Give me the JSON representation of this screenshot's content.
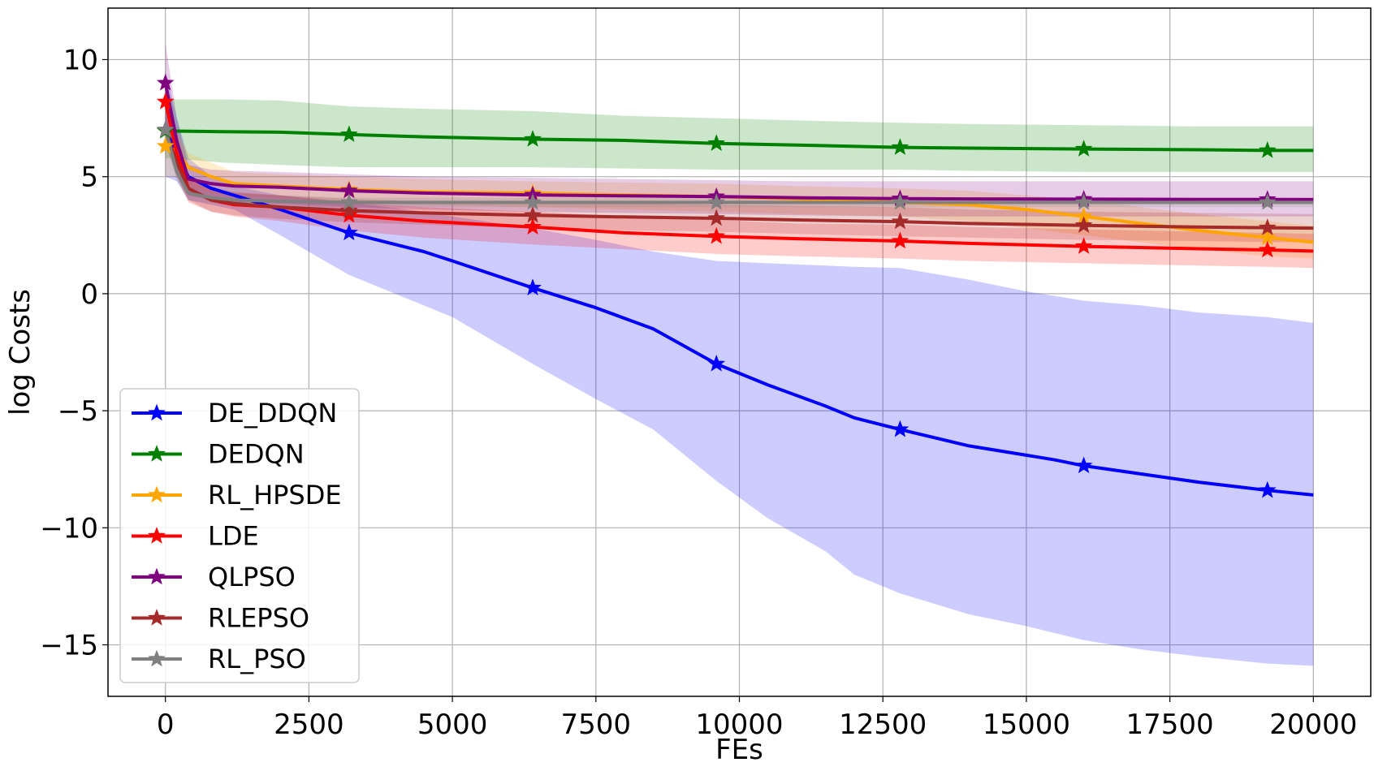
{
  "chart_data": {
    "type": "line",
    "title": "",
    "xlabel": "FEs",
    "ylabel": "log Costs",
    "xlim": [
      -1000,
      21000
    ],
    "ylim": [
      -17.2,
      12.2
    ],
    "xticks": [
      0,
      2500,
      5000,
      7500,
      10000,
      12500,
      15000,
      17500,
      20000
    ],
    "xtick_labels": [
      "0",
      "2500",
      "5000",
      "7500",
      "10000",
      "12500",
      "15000",
      "17500",
      "20000"
    ],
    "yticks": [
      10,
      5,
      0,
      -5,
      -10,
      -15
    ],
    "ytick_labels": [
      "10",
      "5",
      "0",
      "−5",
      "−10",
      "−15"
    ],
    "grid": true,
    "legend_position": "lower-left",
    "marker_x": [
      0,
      3200,
      6400,
      9600,
      12800,
      16000,
      19200
    ],
    "series": [
      {
        "name": "DE_DDQN",
        "color": "#0000ff",
        "fill_opacity": 0.2,
        "x": [
          0,
          200,
          400,
          800,
          1200,
          2000,
          3200,
          4500,
          5000,
          6400,
          7500,
          8500,
          9600,
          10500,
          11500,
          12000,
          12800,
          14000,
          15000,
          15500,
          16000,
          17000,
          18000,
          19200,
          20000
        ],
        "mean": [
          7.0,
          6.0,
          5.0,
          4.5,
          4.2,
          3.6,
          2.6,
          1.8,
          1.4,
          0.25,
          -0.6,
          -1.5,
          -3.0,
          -3.9,
          -4.8,
          -5.3,
          -5.8,
          -6.5,
          -6.9,
          -7.1,
          -7.35,
          -7.7,
          -8.05,
          -8.4,
          -8.6
        ],
        "lower": [
          5.0,
          4.8,
          4.0,
          3.8,
          3.6,
          2.5,
          0.8,
          -0.5,
          -1.0,
          -3.0,
          -4.5,
          -5.8,
          -8.0,
          -9.6,
          -11.0,
          -12.0,
          -12.8,
          -13.7,
          -14.2,
          -14.5,
          -14.8,
          -15.2,
          -15.5,
          -15.8,
          -15.9
        ],
        "upper": [
          9.5,
          7.5,
          5.8,
          5.0,
          4.6,
          4.2,
          3.9,
          3.5,
          3.3,
          2.8,
          2.3,
          1.8,
          1.4,
          1.3,
          1.2,
          1.15,
          1.1,
          0.6,
          0.1,
          -0.1,
          -0.3,
          -0.5,
          -0.8,
          -1.0,
          -1.25
        ],
        "marker_y": [
          7.0,
          2.6,
          0.25,
          -3.0,
          -5.8,
          -7.35,
          -8.4
        ]
      },
      {
        "name": "DEDQN",
        "color": "#008000",
        "fill_opacity": 0.2,
        "x": [
          0,
          1000,
          2000,
          3200,
          4500,
          6400,
          8000,
          9600,
          11000,
          12800,
          14000,
          16000,
          18000,
          19200,
          20000
        ],
        "mean": [
          6.95,
          6.92,
          6.9,
          6.8,
          6.7,
          6.6,
          6.55,
          6.42,
          6.35,
          6.25,
          6.22,
          6.18,
          6.15,
          6.12,
          6.12
        ],
        "lower": [
          5.8,
          5.6,
          5.5,
          5.4,
          5.4,
          5.4,
          5.35,
          5.3,
          5.3,
          5.3,
          5.25,
          5.2,
          5.2,
          5.2,
          5.2
        ],
        "upper": [
          8.3,
          8.3,
          8.25,
          8.0,
          7.9,
          7.8,
          7.6,
          7.5,
          7.4,
          7.3,
          7.25,
          7.2,
          7.15,
          7.15,
          7.15
        ],
        "marker_y": [
          6.95,
          6.8,
          6.6,
          6.42,
          6.25,
          6.18,
          6.12
        ]
      },
      {
        "name": "RL_HPSDE",
        "color": "#ffa500",
        "fill_opacity": 0.2,
        "x": [
          0,
          200,
          400,
          800,
          1200,
          2000,
          3200,
          4500,
          6400,
          8000,
          9600,
          11000,
          12800,
          14000,
          15000,
          16000,
          17000,
          18000,
          19200,
          20000
        ],
        "mean": [
          6.3,
          6.1,
          5.4,
          5.0,
          4.7,
          4.6,
          4.45,
          4.35,
          4.3,
          4.22,
          4.15,
          4.05,
          3.9,
          3.8,
          3.6,
          3.3,
          3.0,
          2.7,
          2.4,
          2.2
        ],
        "lower": [
          5.0,
          5.0,
          4.6,
          4.3,
          4.2,
          4.1,
          3.9,
          3.8,
          3.7,
          3.6,
          3.5,
          3.4,
          3.3,
          3.1,
          2.8,
          2.5,
          2.2,
          1.9,
          1.6,
          1.5
        ],
        "upper": [
          7.0,
          6.9,
          6.0,
          5.6,
          5.2,
          5.1,
          5.0,
          4.9,
          4.8,
          4.75,
          4.7,
          4.6,
          4.5,
          4.4,
          4.2,
          4.0,
          3.7,
          3.4,
          3.1,
          2.9
        ],
        "marker_y": [
          6.3,
          4.45,
          4.3,
          4.15,
          3.9,
          3.3,
          2.4
        ]
      },
      {
        "name": "LDE",
        "color": "#ff0000",
        "fill_opacity": 0.2,
        "x": [
          0,
          200,
          400,
          800,
          1200,
          2000,
          3200,
          4500,
          6400,
          8000,
          9600,
          11000,
          12800,
          14000,
          16000,
          18000,
          19200,
          20000
        ],
        "mean": [
          8.2,
          6.0,
          4.5,
          4.0,
          3.8,
          3.7,
          3.35,
          3.1,
          2.85,
          2.6,
          2.45,
          2.35,
          2.25,
          2.15,
          2.02,
          1.92,
          1.87,
          1.82
        ],
        "lower": [
          7.5,
          5.0,
          3.9,
          3.5,
          3.3,
          3.1,
          2.7,
          2.4,
          2.1,
          1.9,
          1.7,
          1.6,
          1.5,
          1.4,
          1.3,
          1.2,
          1.15,
          1.1
        ],
        "upper": [
          9.0,
          6.8,
          5.0,
          4.5,
          4.3,
          4.2,
          3.9,
          3.7,
          3.5,
          3.3,
          3.15,
          3.0,
          2.95,
          2.85,
          2.75,
          2.65,
          2.6,
          2.55
        ],
        "marker_y": [
          8.2,
          3.35,
          2.85,
          2.45,
          2.25,
          2.02,
          1.87
        ]
      },
      {
        "name": "QLPSO",
        "color": "#800080",
        "fill_opacity": 0.2,
        "x": [
          0,
          200,
          400,
          800,
          1200,
          2000,
          3200,
          4500,
          6400,
          8000,
          9600,
          11000,
          12800,
          14000,
          16000,
          18000,
          19200,
          20000
        ],
        "mean": [
          9.0,
          6.5,
          4.9,
          4.7,
          4.6,
          4.55,
          4.4,
          4.3,
          4.22,
          4.18,
          4.15,
          4.1,
          4.06,
          4.05,
          4.04,
          4.03,
          4.03,
          4.02
        ],
        "lower": [
          7.5,
          5.5,
          4.2,
          4.0,
          3.9,
          3.85,
          3.7,
          3.6,
          3.5,
          3.45,
          3.4,
          3.35,
          3.3,
          3.3,
          3.3,
          3.3,
          3.3,
          3.3
        ],
        "upper": [
          10.7,
          7.5,
          5.5,
          5.3,
          5.25,
          5.2,
          5.1,
          5.0,
          4.95,
          4.9,
          4.85,
          4.8,
          4.8,
          4.8,
          4.8,
          4.8,
          4.8,
          4.8
        ],
        "marker_y": [
          9.0,
          4.4,
          4.22,
          4.15,
          4.06,
          4.04,
          4.03
        ]
      },
      {
        "name": "RLEPSO",
        "color": "#a52a2a",
        "fill_opacity": 0.2,
        "x": [
          0,
          200,
          400,
          800,
          1200,
          2000,
          3200,
          4500,
          6400,
          8000,
          9600,
          11000,
          12800,
          14000,
          16000,
          18000,
          19200,
          20000
        ],
        "mean": [
          7.0,
          5.6,
          4.5,
          4.0,
          3.85,
          3.7,
          3.55,
          3.45,
          3.35,
          3.28,
          3.22,
          3.15,
          3.08,
          3.0,
          2.92,
          2.85,
          2.82,
          2.8
        ],
        "lower": [
          6.4,
          5.0,
          4.0,
          3.5,
          3.35,
          3.2,
          3.05,
          2.95,
          2.8,
          2.7,
          2.65,
          2.55,
          2.45,
          2.4,
          2.3,
          2.25,
          2.2,
          2.2
        ],
        "upper": [
          7.6,
          6.2,
          5.0,
          4.5,
          4.35,
          4.2,
          4.05,
          3.95,
          3.9,
          3.85,
          3.8,
          3.75,
          3.7,
          3.6,
          3.5,
          3.45,
          3.42,
          3.4
        ],
        "marker_y": [
          7.0,
          3.55,
          3.35,
          3.22,
          3.08,
          2.92,
          2.82
        ]
      },
      {
        "name": "RL_PSO",
        "color": "#808080",
        "fill_opacity": 0.2,
        "x": [
          0,
          200,
          400,
          800,
          1200,
          2000,
          3200,
          4500,
          6400,
          8000,
          9600,
          11000,
          12800,
          14000,
          16000,
          18000,
          19200,
          20000
        ],
        "mean": [
          7.0,
          5.2,
          4.3,
          4.1,
          4.0,
          3.95,
          3.9,
          3.9,
          3.9,
          3.9,
          3.9,
          3.9,
          3.9,
          3.9,
          3.9,
          3.9,
          3.9,
          3.9
        ],
        "lower": [
          6.5,
          4.8,
          4.0,
          3.85,
          3.75,
          3.7,
          3.7,
          3.7,
          3.7,
          3.7,
          3.7,
          3.7,
          3.7,
          3.7,
          3.7,
          3.7,
          3.7,
          3.7
        ],
        "upper": [
          7.5,
          5.6,
          4.6,
          4.35,
          4.25,
          4.2,
          4.1,
          4.1,
          4.1,
          4.1,
          4.1,
          4.1,
          4.1,
          4.1,
          4.1,
          4.1,
          4.1,
          4.1
        ],
        "marker_y": [
          7.0,
          3.9,
          3.9,
          3.9,
          3.9,
          3.9,
          3.9
        ]
      }
    ]
  }
}
